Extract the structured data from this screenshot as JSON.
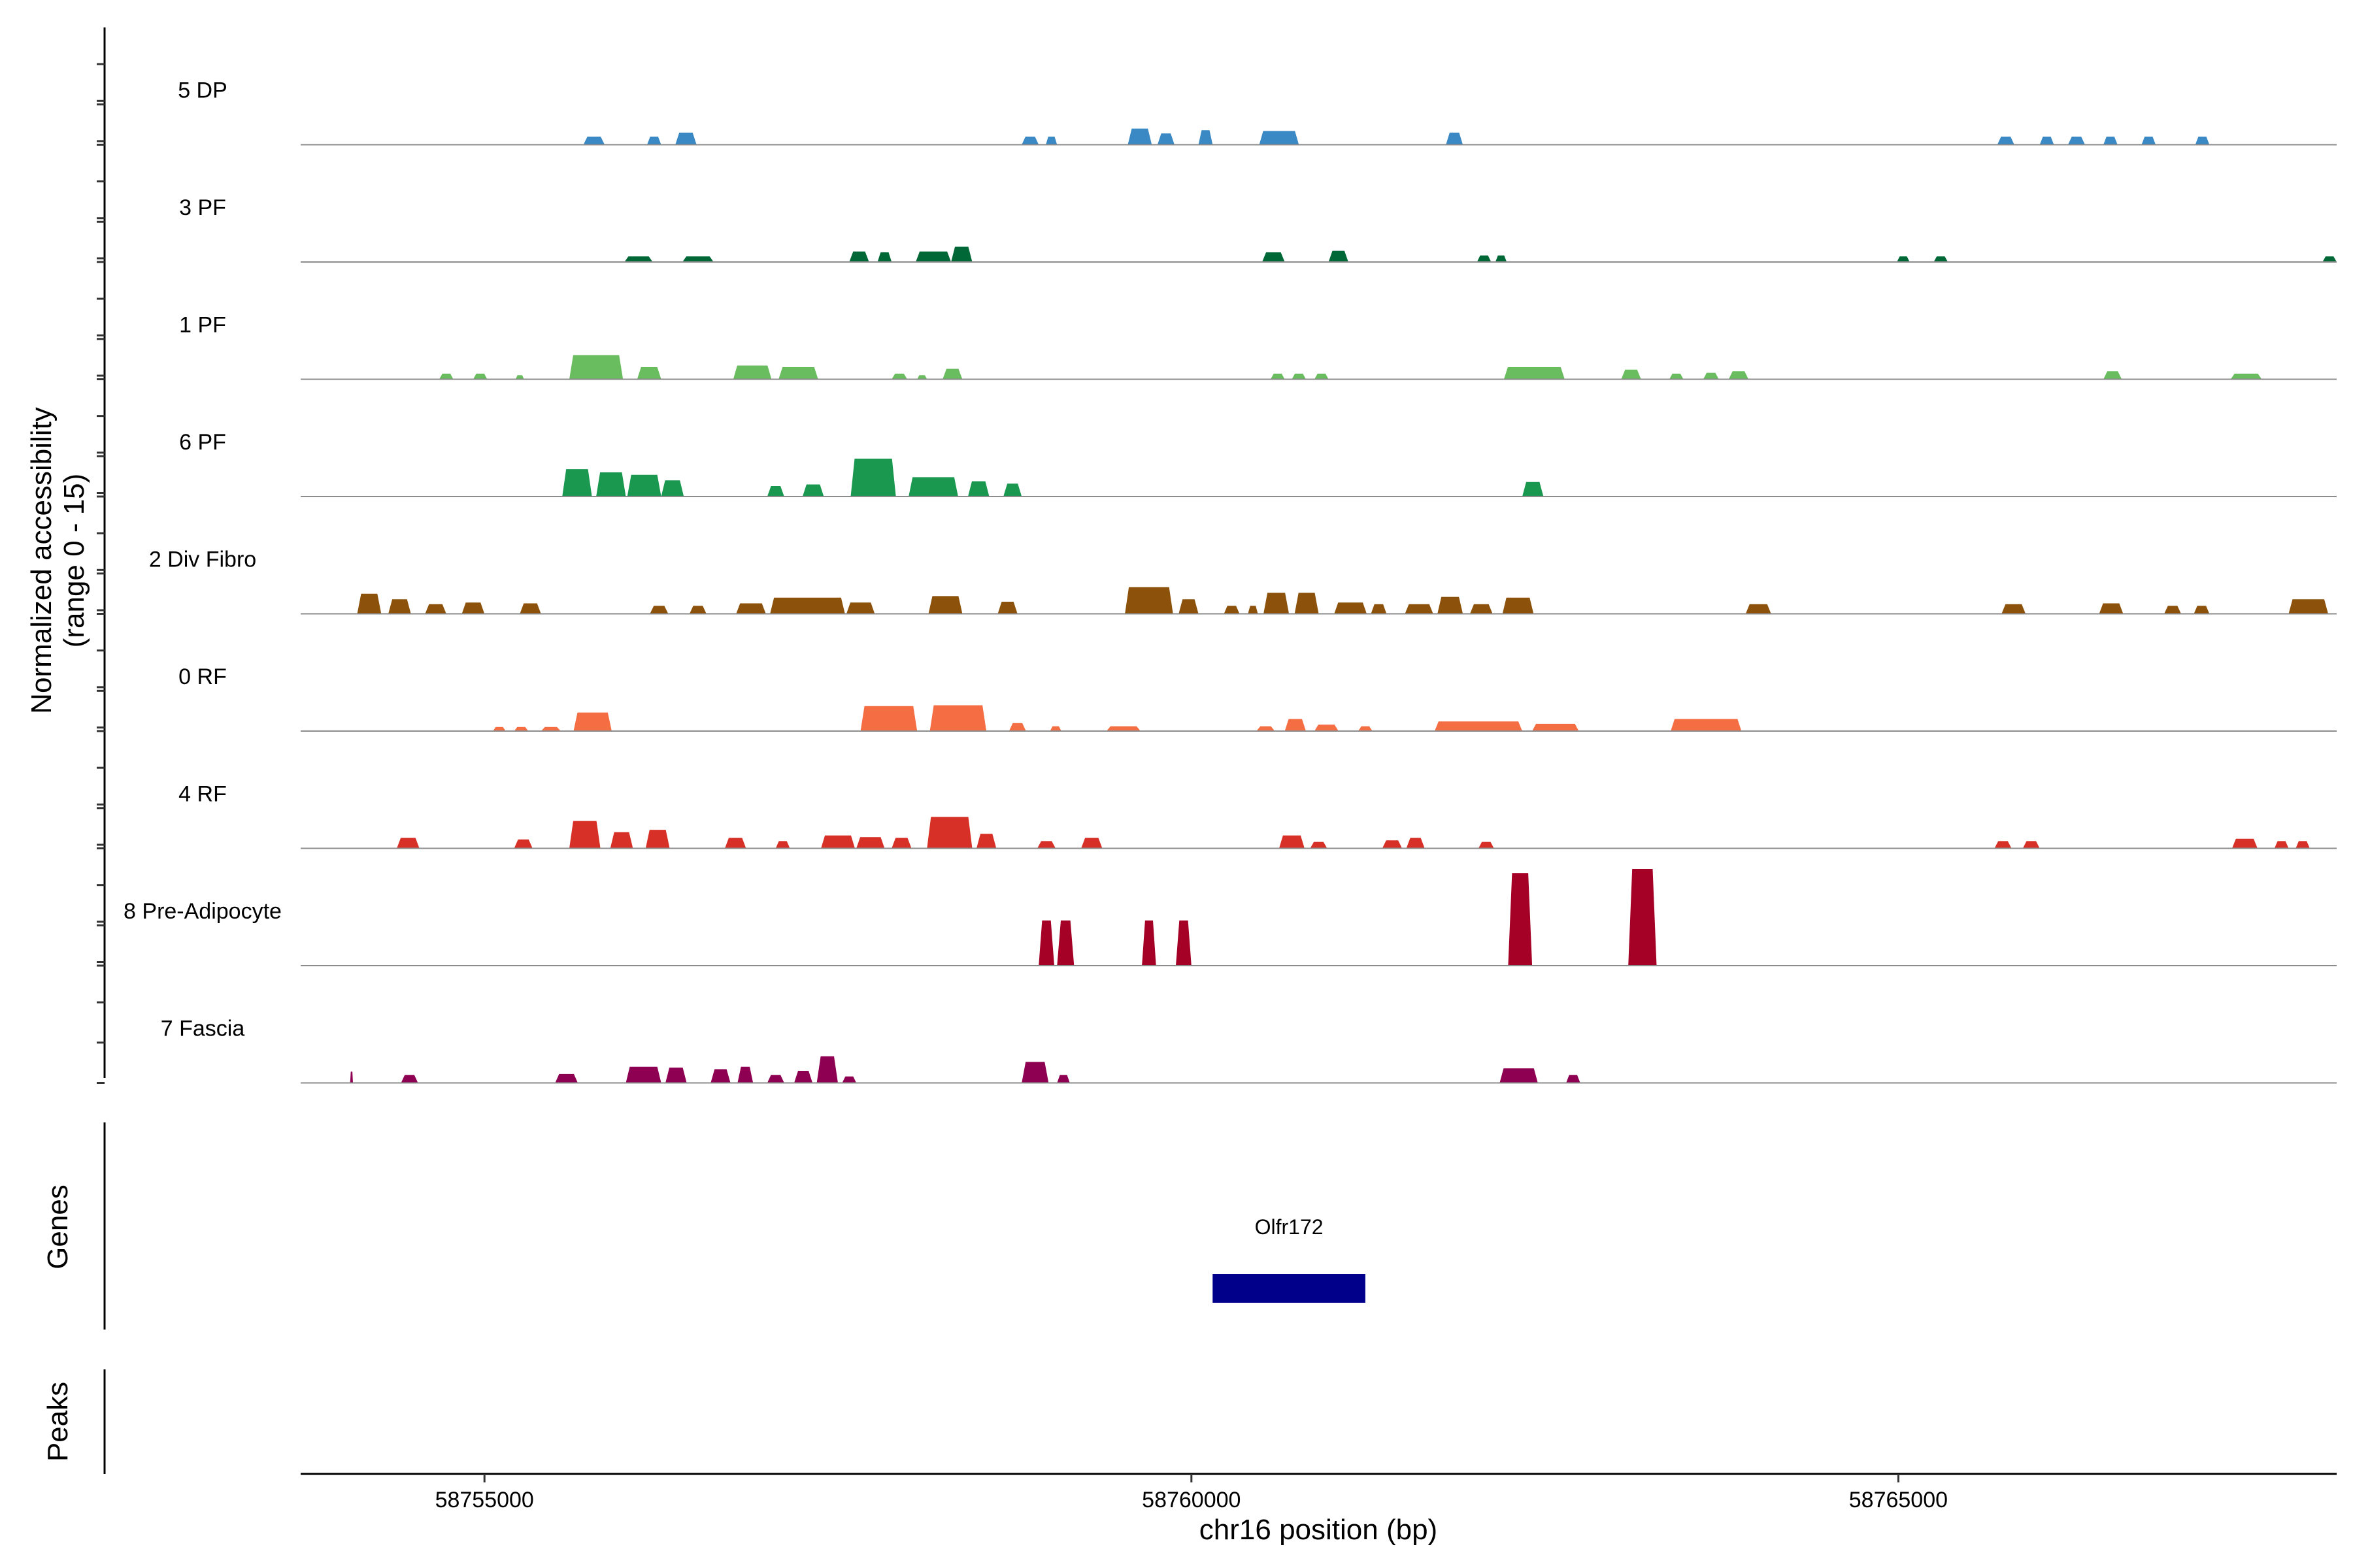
{
  "chart_data": {
    "type": "area",
    "title": "",
    "ylabel_line1": "Normalized accessibility",
    "ylabel_line2": "(range 0 - 15)",
    "ylim": [
      0,
      15
    ],
    "xlabel": "chr16 position (bp)",
    "xlim": [
      58753700,
      58768100
    ],
    "xticks": [
      58755000,
      58760000,
      58765000
    ],
    "xtick_labels": [
      "58755000",
      "58760000",
      "58765000"
    ],
    "genes_label": "Genes",
    "peaks_label": "Peaks",
    "genes": [
      {
        "name": "Olfr172",
        "start": 58760150,
        "end": 58761230,
        "color": "#00008b"
      }
    ],
    "tracks": [
      {
        "name": "5 DP",
        "color": "#3a89c4",
        "peaks": [
          [
            58755700,
            58755850,
            1.0
          ],
          [
            58756150,
            58756250,
            1.0
          ],
          [
            58756350,
            58756500,
            1.5
          ],
          [
            58758800,
            58758920,
            1.0
          ],
          [
            58758970,
            58759050,
            1.0
          ],
          [
            58759550,
            58759720,
            2.0
          ],
          [
            58759760,
            58759880,
            1.4
          ],
          [
            58760050,
            58760150,
            1.8
          ],
          [
            58760480,
            58760760,
            1.7
          ],
          [
            58761800,
            58761920,
            1.5
          ],
          [
            58765700,
            58765820,
            1.0
          ],
          [
            58766000,
            58766100,
            1.0
          ],
          [
            58766200,
            58766320,
            1.0
          ],
          [
            58766450,
            58766550,
            1.0
          ],
          [
            58766720,
            58766820,
            1.0
          ],
          [
            58767100,
            58767200,
            1.0
          ]
        ]
      },
      {
        "name": "3 PF",
        "color": "#006837",
        "peaks": [
          [
            58755990,
            58756190,
            0.7
          ],
          [
            58756400,
            58756620,
            0.7
          ],
          [
            58757580,
            58757720,
            1.3
          ],
          [
            58757780,
            58757880,
            1.2
          ],
          [
            58758050,
            58758300,
            1.3
          ],
          [
            58758300,
            58758450,
            1.9
          ],
          [
            58760500,
            58760660,
            1.2
          ],
          [
            58760970,
            58761110,
            1.4
          ],
          [
            58762020,
            58762120,
            0.8
          ],
          [
            58762150,
            58762230,
            0.8
          ],
          [
            58764990,
            58765080,
            0.7
          ],
          [
            58765250,
            58765350,
            0.7
          ],
          [
            58768000,
            58768100,
            0.7
          ]
        ]
      },
      {
        "name": "1 PF",
        "color": "#6abd5f",
        "peaks": [
          [
            58754680,
            58754780,
            0.7
          ],
          [
            58754920,
            58755020,
            0.7
          ],
          [
            58755220,
            58755280,
            0.5
          ],
          [
            58755600,
            58755980,
            3.0
          ],
          [
            58756080,
            58756250,
            1.5
          ],
          [
            58756760,
            58757030,
            1.7
          ],
          [
            58757080,
            58757360,
            1.5
          ],
          [
            58757880,
            58757990,
            0.7
          ],
          [
            58758060,
            58758130,
            0.5
          ],
          [
            58758240,
            58758380,
            1.3
          ],
          [
            58760560,
            58760660,
            0.7
          ],
          [
            58760710,
            58760810,
            0.7
          ],
          [
            58760870,
            58760970,
            0.7
          ],
          [
            58762210,
            58762640,
            1.5
          ],
          [
            58763040,
            58763180,
            1.2
          ],
          [
            58763380,
            58763480,
            0.7
          ],
          [
            58763620,
            58763730,
            0.8
          ],
          [
            58763800,
            58763940,
            1.0
          ],
          [
            58766450,
            58766580,
            1.0
          ],
          [
            58767350,
            58767570,
            0.7
          ]
        ]
      },
      {
        "name": "6 PF",
        "color": "#1a9850",
        "peaks": [
          [
            58755550,
            58755760,
            3.4
          ],
          [
            58755790,
            58756000,
            3.0
          ],
          [
            58756010,
            58756250,
            2.7
          ],
          [
            58756250,
            58756410,
            2.0
          ],
          [
            58757000,
            58757120,
            1.3
          ],
          [
            58757250,
            58757400,
            1.5
          ],
          [
            58757590,
            58757910,
            4.7
          ],
          [
            58758000,
            58758350,
            2.4
          ],
          [
            58758420,
            58758570,
            1.9
          ],
          [
            58758670,
            58758800,
            1.6
          ],
          [
            58762340,
            58762490,
            1.8
          ]
        ]
      },
      {
        "name": "2 Div Fibro",
        "color": "#8c510a",
        "peaks": [
          [
            58754100,
            58754270,
            2.5
          ],
          [
            58754320,
            58754480,
            1.8
          ],
          [
            58754580,
            58754730,
            1.2
          ],
          [
            58754840,
            58755000,
            1.4
          ],
          [
            58755250,
            58755400,
            1.3
          ],
          [
            58756170,
            58756300,
            1.0
          ],
          [
            58756450,
            58756570,
            1.0
          ],
          [
            58756780,
            58756990,
            1.3
          ],
          [
            58757020,
            58757550,
            2.0
          ],
          [
            58757560,
            58757760,
            1.4
          ],
          [
            58758140,
            58758380,
            2.2
          ],
          [
            58758630,
            58758770,
            1.5
          ],
          [
            58759530,
            58759870,
            3.3
          ],
          [
            58759910,
            58760050,
            1.8
          ],
          [
            58760230,
            58760340,
            1.0
          ],
          [
            58760400,
            58760470,
            1.0
          ],
          [
            58760510,
            58760690,
            2.6
          ],
          [
            58760730,
            58760900,
            2.6
          ],
          [
            58761010,
            58761240,
            1.4
          ],
          [
            58761270,
            58761380,
            1.2
          ],
          [
            58761510,
            58761710,
            1.2
          ],
          [
            58761740,
            58761920,
            2.1
          ],
          [
            58761970,
            58762130,
            1.2
          ],
          [
            58762200,
            58762420,
            2.0
          ],
          [
            58763920,
            58764100,
            1.2
          ],
          [
            58765730,
            58765900,
            1.2
          ],
          [
            58766420,
            58766590,
            1.3
          ],
          [
            58766880,
            58767000,
            1.0
          ],
          [
            58767090,
            58767200,
            1.0
          ],
          [
            58767760,
            58768040,
            1.8
          ]
        ]
      },
      {
        "name": "0 RF",
        "color": "#f46d43",
        "peaks": [
          [
            58755060,
            58755150,
            0.5
          ],
          [
            58755210,
            58755310,
            0.5
          ],
          [
            58755400,
            58755540,
            0.5
          ],
          [
            58755630,
            58755900,
            2.3
          ],
          [
            58757660,
            58758060,
            3.1
          ],
          [
            58758150,
            58758550,
            3.2
          ],
          [
            58758710,
            58758830,
            1.0
          ],
          [
            58759000,
            58759080,
            0.6
          ],
          [
            58759400,
            58759640,
            0.6
          ],
          [
            58760460,
            58760590,
            0.6
          ],
          [
            58760660,
            58760810,
            1.5
          ],
          [
            58760870,
            58761040,
            0.8
          ],
          [
            58761180,
            58761280,
            0.6
          ],
          [
            58761720,
            58762340,
            1.2
          ],
          [
            58762410,
            58762740,
            0.9
          ],
          [
            58763390,
            58763890,
            1.5
          ]
        ]
      },
      {
        "name": "4 RF",
        "color": "#d73027",
        "peaks": [
          [
            58754380,
            58754540,
            1.3
          ],
          [
            58755210,
            58755340,
            1.1
          ],
          [
            58755600,
            58755820,
            3.4
          ],
          [
            58755890,
            58756050,
            2.0
          ],
          [
            58756140,
            58756310,
            2.3
          ],
          [
            58756700,
            58756850,
            1.3
          ],
          [
            58757060,
            58757160,
            0.9
          ],
          [
            58757380,
            58757620,
            1.6
          ],
          [
            58757630,
            58757830,
            1.4
          ],
          [
            58757880,
            58758020,
            1.3
          ],
          [
            58758130,
            58758450,
            3.9
          ],
          [
            58758480,
            58758620,
            1.8
          ],
          [
            58758910,
            58759040,
            0.9
          ],
          [
            58759220,
            58759370,
            1.3
          ],
          [
            58760620,
            58760800,
            1.6
          ],
          [
            58760840,
            58760960,
            0.8
          ],
          [
            58761350,
            58761490,
            1.0
          ],
          [
            58761520,
            58761650,
            1.3
          ],
          [
            58762030,
            58762140,
            0.8
          ],
          [
            58765680,
            58765800,
            0.9
          ],
          [
            58765880,
            58766000,
            0.9
          ],
          [
            58767360,
            58767540,
            1.2
          ],
          [
            58767660,
            58767760,
            0.9
          ],
          [
            58767810,
            58767910,
            0.9
          ]
        ]
      },
      {
        "name": "8 Pre-Adipocyte",
        "color": "#a50026",
        "peaks": [
          [
            58758920,
            58759030,
            5.6
          ],
          [
            58759050,
            58759170,
            5.6
          ],
          [
            58759650,
            58759750,
            5.6
          ],
          [
            58759890,
            58760000,
            5.6
          ],
          [
            58762240,
            58762410,
            11.5
          ],
          [
            58763090,
            58763290,
            12.0
          ]
        ]
      },
      {
        "name": "7 Fascia",
        "color": "#8e0152",
        "peaks": [
          [
            58754050,
            58754070,
            1.4
          ],
          [
            58754410,
            58754530,
            1.0
          ],
          [
            58755500,
            58755660,
            1.1
          ],
          [
            58756000,
            58756250,
            2.0
          ],
          [
            58756280,
            58756430,
            1.9
          ],
          [
            58756600,
            58756740,
            1.7
          ],
          [
            58756790,
            58756900,
            2.0
          ],
          [
            58757000,
            58757120,
            1.0
          ],
          [
            58757190,
            58757320,
            1.5
          ],
          [
            58757350,
            58757500,
            3.3
          ],
          [
            58757530,
            58757630,
            0.8
          ],
          [
            58758800,
            58758990,
            2.6
          ],
          [
            58759050,
            58759140,
            1.0
          ],
          [
            58762180,
            58762450,
            1.8
          ],
          [
            58762650,
            58762750,
            1.0
          ]
        ]
      }
    ]
  }
}
